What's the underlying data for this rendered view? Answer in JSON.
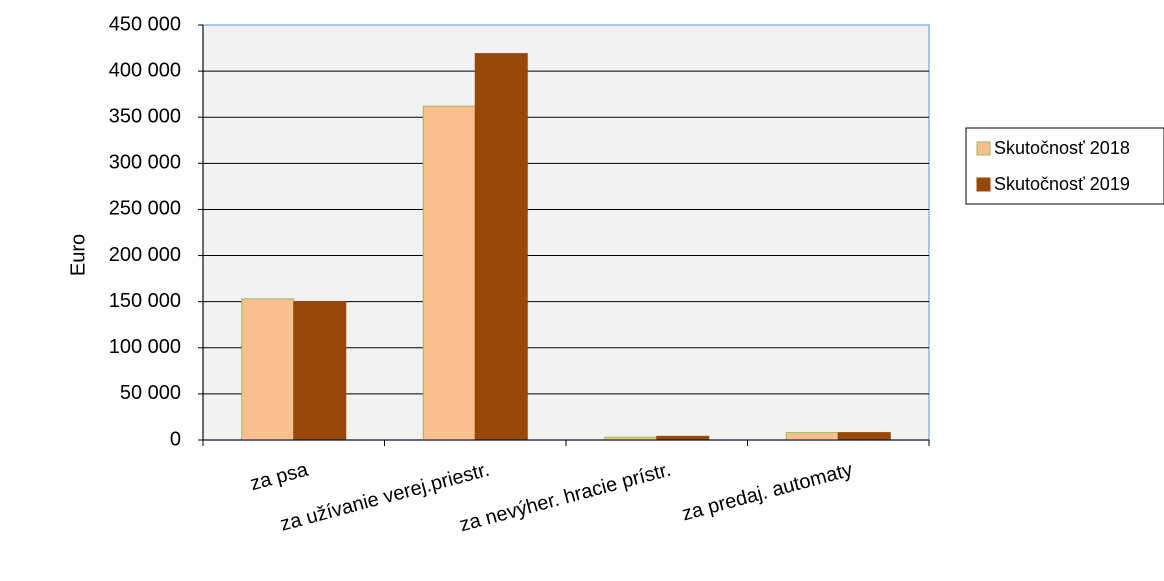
{
  "chart_data": {
    "type": "bar",
    "title": "",
    "xlabel": "",
    "ylabel": "Euro",
    "ylim": [
      0,
      450000
    ],
    "yticks": [
      0,
      50000,
      100000,
      150000,
      200000,
      250000,
      300000,
      350000,
      400000,
      450000
    ],
    "ytick_labels": [
      "0",
      "50 000",
      "100 000",
      "150 000",
      "200 000",
      "250 000",
      "300 000",
      "350 000",
      "400 000",
      "450 000"
    ],
    "categories": [
      "za psa",
      "za užívanie verej.priestr.",
      "za nevýher. hracie prístr.",
      "za predaj. automaty"
    ],
    "series": [
      {
        "name": "Skutočnosť 2018",
        "color": "#f9bf8f",
        "values": [
          153000,
          362000,
          3000,
          8000
        ]
      },
      {
        "name": "Skutočnosť 2019",
        "color": "#974806",
        "values": [
          150000,
          419000,
          4000,
          8000
        ]
      }
    ],
    "grid": true,
    "plot_background": "#f2f2f2",
    "legend": "right"
  }
}
